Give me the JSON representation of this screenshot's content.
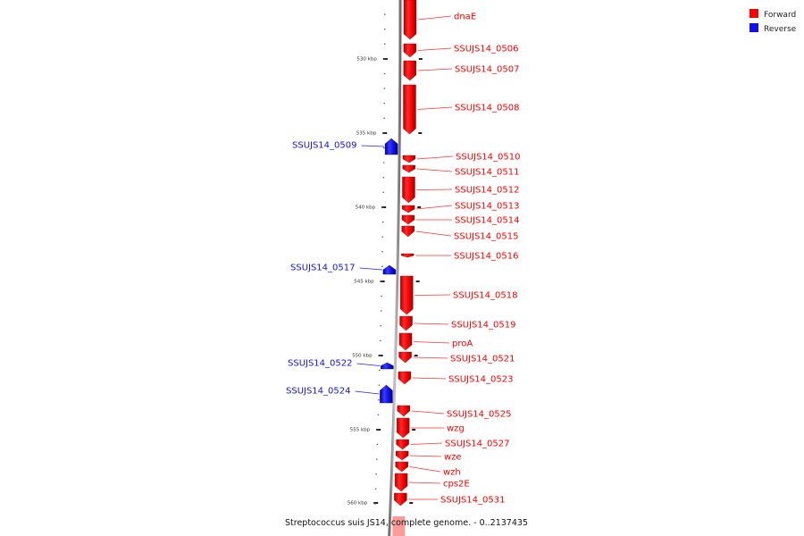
{
  "legend": {
    "forward": {
      "label": "Forward",
      "color": "#ff0000"
    },
    "reverse": {
      "label": "Reverse",
      "color": "#1111ee"
    }
  },
  "caption": "Streptococcus suis JS14, complete genome. - 0..2137435",
  "scale_ticks": [
    {
      "label": "530 kbp",
      "kbp": 530
    },
    {
      "label": "535 kbp",
      "kbp": 535
    },
    {
      "label": "540 kbp",
      "kbp": 540
    },
    {
      "label": "545 kbp",
      "kbp": 545
    },
    {
      "label": "550 kbp",
      "kbp": 550
    },
    {
      "label": "555 kbp",
      "kbp": 555
    },
    {
      "label": "560 kbp",
      "kbp": 560
    }
  ],
  "genes": [
    {
      "name": "dnaE",
      "strand": "forward"
    },
    {
      "name": "SSUJS14_0506",
      "strand": "forward"
    },
    {
      "name": "SSUJS14_0507",
      "strand": "forward"
    },
    {
      "name": "SSUJS14_0508",
      "strand": "forward"
    },
    {
      "name": "SSUJS14_0509",
      "strand": "reverse"
    },
    {
      "name": "SSUJS14_0510",
      "strand": "forward"
    },
    {
      "name": "SSUJS14_0511",
      "strand": "forward"
    },
    {
      "name": "SSUJS14_0512",
      "strand": "forward"
    },
    {
      "name": "SSUJS14_0513",
      "strand": "forward"
    },
    {
      "name": "SSUJS14_0514",
      "strand": "forward"
    },
    {
      "name": "SSUJS14_0515",
      "strand": "forward"
    },
    {
      "name": "SSUJS14_0516",
      "strand": "forward"
    },
    {
      "name": "SSUJS14_0517",
      "strand": "reverse"
    },
    {
      "name": "SSUJS14_0518",
      "strand": "forward"
    },
    {
      "name": "SSUJS14_0519",
      "strand": "forward"
    },
    {
      "name": "proA",
      "strand": "forward"
    },
    {
      "name": "SSUJS14_0521",
      "strand": "forward"
    },
    {
      "name": "SSUJS14_0522",
      "strand": "reverse"
    },
    {
      "name": "SSUJS14_0523",
      "strand": "forward"
    },
    {
      "name": "SSUJS14_0524",
      "strand": "reverse"
    },
    {
      "name": "SSUJS14_0525",
      "strand": "forward"
    },
    {
      "name": "wzg",
      "strand": "forward"
    },
    {
      "name": "SSUJS14_0527",
      "strand": "forward"
    },
    {
      "name": "wze",
      "strand": "forward"
    },
    {
      "name": "wzh",
      "strand": "forward"
    },
    {
      "name": "cps2E",
      "strand": "forward"
    },
    {
      "name": "SSUJS14_0531",
      "strand": "forward"
    }
  ]
}
